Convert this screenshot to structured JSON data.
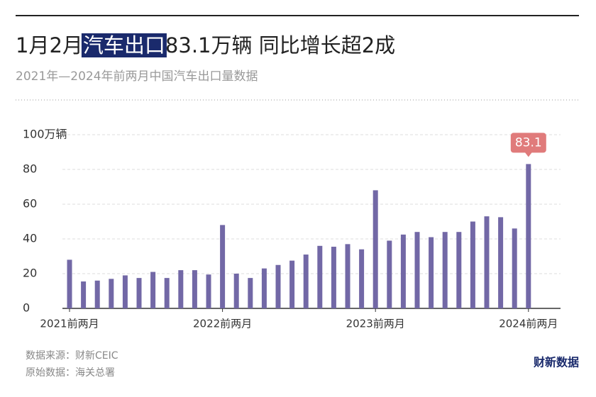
{
  "chart_data": {
    "type": "bar",
    "title_parts": [
      "1月2月",
      "汽车出口",
      "83.1万辆 同比增长超2成"
    ],
    "subtitle": "2021年—2024年前两月中国汽车出口量数据",
    "categories": [
      "2021前两月",
      null,
      null,
      null,
      null,
      null,
      null,
      null,
      null,
      null,
      null,
      "2022前两月",
      null,
      null,
      null,
      null,
      null,
      null,
      null,
      null,
      null,
      null,
      "2023前两月",
      null,
      null,
      null,
      null,
      null,
      null,
      null,
      null,
      null,
      null,
      "2024前两月"
    ],
    "values": [
      28,
      15.5,
      16,
      17,
      19,
      17.5,
      21,
      17.5,
      22,
      22,
      19.5,
      48,
      20,
      17.5,
      23,
      25,
      27.5,
      31,
      36,
      35.5,
      37,
      34,
      68,
      39,
      42.5,
      44,
      41,
      44,
      44,
      50,
      53,
      52.5,
      46,
      83.1
    ],
    "color": "#7268a6",
    "highlight_color": "#e07b7b",
    "ylim": [
      0,
      100
    ],
    "yticks": [
      0,
      20,
      40,
      60,
      80,
      {
        "value": 100,
        "label": "100万辆"
      }
    ],
    "grid": true,
    "source": "数据来源：财新CEIC",
    "raw_source": "原始数据：海关总署",
    "logo": "财新数据"
  }
}
